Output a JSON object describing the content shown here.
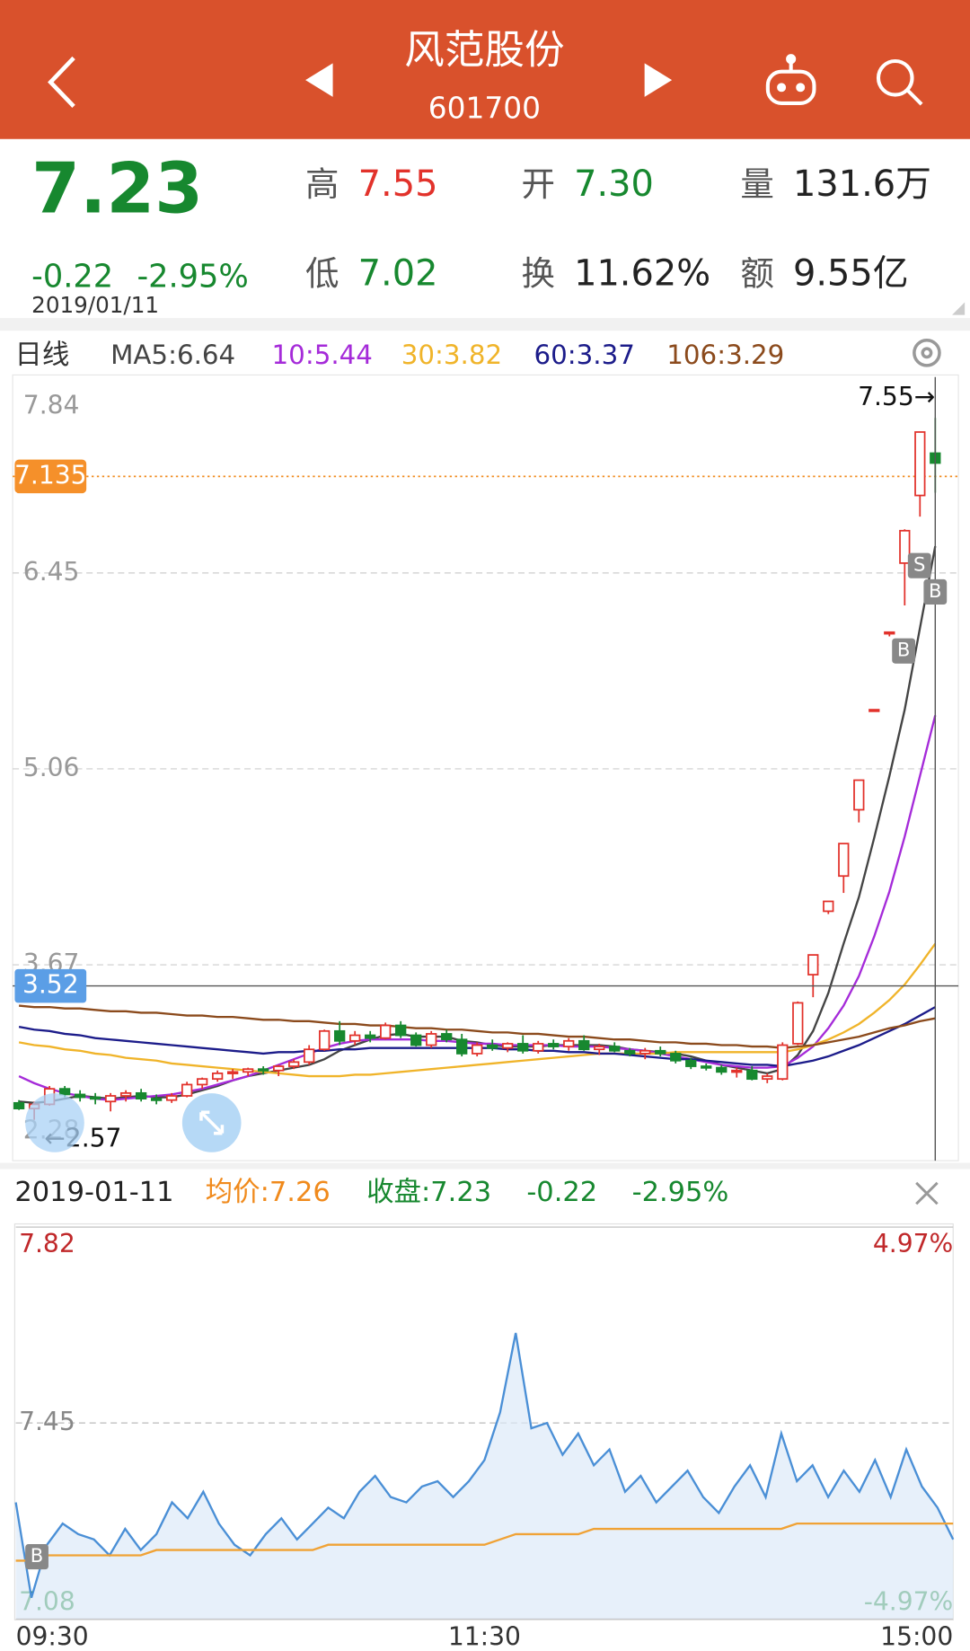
{
  "header": {
    "title": "风范股份",
    "code": "601700"
  },
  "quote": {
    "price": "7.23",
    "change": "-0.22",
    "change_pct": "-2.95%",
    "date": "2019/01/11",
    "fields": [
      {
        "label": "高",
        "value": "7.55"
      },
      {
        "label": "开",
        "value": "7.30"
      },
      {
        "label": "量",
        "value": "131.6万"
      },
      {
        "label": "低",
        "value": "7.02"
      },
      {
        "label": "换",
        "value": "11.62%"
      },
      {
        "label": "额",
        "value": "9.55亿"
      }
    ]
  },
  "info_bar": {
    "date": "2019-01-11",
    "avg": "均价:7.26",
    "close": "收盘:7.23",
    "change": "-0.22",
    "change_pct": "-2.95%"
  },
  "chart_data": [
    {
      "type": "candlestick",
      "period_label": "日线",
      "up_color": "#e2322b",
      "down_color": "#17882f",
      "open": [
        2.69,
        2.65,
        2.68,
        2.79,
        2.75,
        2.73,
        2.7,
        2.74,
        2.76,
        2.72,
        2.71,
        2.74,
        2.82,
        2.86,
        2.9,
        2.91,
        2.93,
        2.92,
        2.95,
        2.98,
        3.07,
        3.2,
        3.13,
        3.17,
        3.15,
        3.24,
        3.17,
        3.1,
        3.18,
        3.14,
        3.04,
        3.1,
        3.08,
        3.11,
        3.06,
        3.11,
        3.09,
        3.13,
        3.07,
        3.09,
        3.06,
        3.04,
        3.06,
        3.04,
        2.99,
        2.95,
        2.94,
        2.91,
        2.92,
        2.86,
        2.86,
        3.11,
        3.6,
        4.05,
        4.3,
        4.77,
        5.48,
        6.03,
        6.52,
        7.0,
        7.3
      ],
      "high": [
        2.71,
        2.7,
        2.81,
        2.81,
        2.78,
        2.76,
        2.76,
        2.78,
        2.79,
        2.75,
        2.76,
        2.84,
        2.87,
        2.92,
        2.93,
        2.94,
        2.95,
        2.96,
        3.0,
        3.1,
        3.21,
        3.27,
        3.2,
        3.2,
        3.26,
        3.27,
        3.19,
        3.2,
        3.21,
        3.18,
        3.12,
        3.14,
        3.12,
        3.17,
        3.13,
        3.14,
        3.15,
        3.17,
        3.11,
        3.12,
        3.08,
        3.08,
        3.09,
        3.06,
        3.01,
        2.97,
        2.96,
        2.94,
        2.95,
        2.9,
        3.12,
        3.41,
        3.74,
        4.12,
        4.53,
        4.98,
        5.48,
        6.03,
        6.76,
        7.45,
        7.55
      ],
      "low": [
        2.64,
        2.57,
        2.67,
        2.73,
        2.7,
        2.68,
        2.63,
        2.7,
        2.7,
        2.68,
        2.69,
        2.73,
        2.79,
        2.84,
        2.86,
        2.88,
        2.89,
        2.88,
        2.93,
        2.96,
        3.06,
        3.1,
        3.1,
        3.12,
        3.14,
        3.15,
        3.09,
        3.08,
        3.12,
        3.02,
        3.02,
        3.06,
        3.05,
        3.04,
        3.04,
        3.07,
        3.06,
        3.06,
        3.03,
        3.05,
        3.02,
        3.0,
        3.02,
        2.97,
        2.93,
        2.92,
        2.89,
        2.87,
        2.85,
        2.83,
        2.85,
        3.1,
        3.44,
        4.03,
        4.18,
        4.68,
        5.48,
        6.0,
        6.22,
        6.85,
        7.02
      ],
      "close": [
        2.65,
        2.68,
        2.79,
        2.75,
        2.73,
        2.72,
        2.74,
        2.76,
        2.72,
        2.71,
        2.74,
        2.82,
        2.86,
        2.9,
        2.91,
        2.93,
        2.92,
        2.95,
        2.98,
        3.07,
        3.2,
        3.13,
        3.17,
        3.15,
        3.24,
        3.17,
        3.1,
        3.18,
        3.14,
        3.04,
        3.1,
        3.08,
        3.11,
        3.06,
        3.11,
        3.09,
        3.13,
        3.07,
        3.09,
        3.06,
        3.04,
        3.06,
        3.04,
        2.99,
        2.95,
        2.94,
        2.91,
        2.92,
        2.86,
        2.88,
        3.1,
        3.4,
        3.74,
        4.12,
        4.53,
        4.98,
        5.48,
        6.03,
        6.75,
        7.45,
        7.23
      ],
      "series": [
        {
          "name": "MA5:6.64",
          "color": "#444444",
          "values": [
            2.7,
            2.69,
            2.7,
            2.72,
            2.74,
            2.73,
            2.72,
            2.73,
            2.74,
            2.73,
            2.73,
            2.75,
            2.78,
            2.81,
            2.85,
            2.88,
            2.9,
            2.92,
            2.94,
            2.96,
            3.0,
            3.06,
            3.1,
            3.14,
            3.17,
            3.18,
            3.16,
            3.16,
            3.16,
            3.13,
            3.12,
            3.1,
            3.09,
            3.09,
            3.09,
            3.1,
            3.1,
            3.1,
            3.1,
            3.09,
            3.07,
            3.06,
            3.05,
            3.04,
            3.02,
            2.99,
            2.96,
            2.94,
            2.92,
            2.9,
            2.93,
            3.03,
            3.2,
            3.47,
            3.82,
            4.15,
            4.57,
            5.01,
            5.48,
            6.06,
            6.64
          ]
        },
        {
          "name": "10:5.44",
          "color": "#a52bd9",
          "values": [
            2.88,
            2.83,
            2.79,
            2.76,
            2.74,
            2.72,
            2.71,
            2.72,
            2.73,
            2.74,
            2.75,
            2.77,
            2.79,
            2.82,
            2.85,
            2.88,
            2.92,
            2.96,
            3.0,
            3.04,
            3.08,
            3.11,
            3.13,
            3.14,
            3.14,
            3.14,
            3.14,
            3.13,
            3.13,
            3.12,
            3.11,
            3.11,
            3.1,
            3.1,
            3.1,
            3.1,
            3.09,
            3.09,
            3.09,
            3.08,
            3.07,
            3.06,
            3.04,
            3.02,
            3.0,
            2.98,
            2.96,
            2.95,
            2.94,
            2.94,
            2.95,
            3.01,
            3.09,
            3.22,
            3.38,
            3.59,
            3.87,
            4.19,
            4.58,
            5.01,
            5.44
          ]
        },
        {
          "name": "30:3.82",
          "color": "#f0b42a",
          "values": [
            3.12,
            3.1,
            3.09,
            3.07,
            3.06,
            3.04,
            3.03,
            3.01,
            3.0,
            2.99,
            2.97,
            2.96,
            2.95,
            2.94,
            2.93,
            2.92,
            2.91,
            2.9,
            2.89,
            2.88,
            2.88,
            2.88,
            2.89,
            2.89,
            2.9,
            2.91,
            2.92,
            2.93,
            2.94,
            2.95,
            2.96,
            2.97,
            2.98,
            2.99,
            3.0,
            3.01,
            3.02,
            3.03,
            3.04,
            3.04,
            3.04,
            3.04,
            3.04,
            3.05,
            3.05,
            3.05,
            3.05,
            3.05,
            3.05,
            3.05,
            3.05,
            3.07,
            3.1,
            3.14,
            3.19,
            3.25,
            3.33,
            3.42,
            3.53,
            3.67,
            3.82
          ]
        },
        {
          "name": "60:3.37",
          "color": "#1c1c8a",
          "values": [
            3.23,
            3.21,
            3.2,
            3.18,
            3.17,
            3.15,
            3.14,
            3.13,
            3.12,
            3.11,
            3.1,
            3.09,
            3.08,
            3.07,
            3.06,
            3.05,
            3.04,
            3.05,
            3.05,
            3.06,
            3.06,
            3.07,
            3.07,
            3.08,
            3.08,
            3.08,
            3.08,
            3.08,
            3.08,
            3.08,
            3.08,
            3.08,
            3.07,
            3.07,
            3.06,
            3.06,
            3.05,
            3.05,
            3.04,
            3.04,
            3.03,
            3.02,
            3.01,
            3.0,
            3.0,
            2.99,
            2.98,
            2.97,
            2.96,
            2.96,
            2.95,
            2.97,
            2.99,
            3.02,
            3.06,
            3.1,
            3.15,
            3.2,
            3.25,
            3.31,
            3.37
          ]
        },
        {
          "name": "106:3.29",
          "color": "#8b4a1c",
          "values": [
            3.38,
            3.37,
            3.37,
            3.36,
            3.36,
            3.35,
            3.34,
            3.34,
            3.33,
            3.33,
            3.32,
            3.31,
            3.31,
            3.3,
            3.3,
            3.29,
            3.28,
            3.28,
            3.27,
            3.27,
            3.26,
            3.25,
            3.25,
            3.24,
            3.24,
            3.23,
            3.22,
            3.22,
            3.21,
            3.21,
            3.2,
            3.19,
            3.19,
            3.18,
            3.18,
            3.17,
            3.16,
            3.16,
            3.15,
            3.14,
            3.14,
            3.13,
            3.12,
            3.12,
            3.11,
            3.11,
            3.1,
            3.1,
            3.09,
            3.09,
            3.08,
            3.09,
            3.1,
            3.12,
            3.14,
            3.16,
            3.19,
            3.22,
            3.24,
            3.27,
            3.29
          ]
        }
      ],
      "ylim": [
        2.28,
        7.84
      ],
      "yticks": [
        2.28,
        3.67,
        5.06,
        6.45,
        7.84
      ],
      "grid": true,
      "reference_line": 7.135,
      "crosshair_value": 3.52,
      "high_label": "7.55→",
      "low_label": "←2.57",
      "trade_markers": [
        "B",
        "S",
        "B"
      ]
    },
    {
      "type": "line",
      "x": [
        0,
        4,
        8,
        12,
        16,
        20,
        24,
        28,
        32,
        36,
        40,
        44,
        48,
        52,
        56,
        60,
        64,
        68,
        72,
        76,
        80,
        84,
        88,
        92,
        96,
        100,
        104,
        108,
        112,
        116,
        120,
        124,
        128,
        132,
        136,
        140,
        144,
        148,
        152,
        156,
        160,
        164,
        168,
        172,
        176,
        180,
        184,
        188,
        192,
        196,
        200,
        204,
        208,
        212,
        216,
        220,
        224,
        228,
        232,
        236,
        240
      ],
      "series": [
        {
          "color": "#4a8fd6",
          "values": [
            7.3,
            7.12,
            7.22,
            7.26,
            7.24,
            7.23,
            7.2,
            7.25,
            7.21,
            7.24,
            7.3,
            7.27,
            7.32,
            7.26,
            7.22,
            7.2,
            7.24,
            7.27,
            7.23,
            7.26,
            7.29,
            7.27,
            7.32,
            7.35,
            7.31,
            7.3,
            7.33,
            7.34,
            7.31,
            7.34,
            7.38,
            7.47,
            7.62,
            7.44,
            7.45,
            7.39,
            7.43,
            7.37,
            7.4,
            7.32,
            7.35,
            7.3,
            7.33,
            7.36,
            7.31,
            7.28,
            7.33,
            7.37,
            7.31,
            7.43,
            7.34,
            7.37,
            7.31,
            7.36,
            7.32,
            7.38,
            7.31,
            7.4,
            7.33,
            7.29,
            7.23
          ]
        },
        {
          "color": "#f0a235",
          "values": [
            7.19,
            7.19,
            7.2,
            7.2,
            7.2,
            7.2,
            7.2,
            7.2,
            7.2,
            7.21,
            7.21,
            7.21,
            7.21,
            7.21,
            7.21,
            7.21,
            7.21,
            7.21,
            7.21,
            7.21,
            7.22,
            7.22,
            7.22,
            7.22,
            7.22,
            7.22,
            7.22,
            7.22,
            7.22,
            7.22,
            7.22,
            7.23,
            7.24,
            7.24,
            7.24,
            7.24,
            7.24,
            7.25,
            7.25,
            7.25,
            7.25,
            7.25,
            7.25,
            7.25,
            7.25,
            7.25,
            7.25,
            7.25,
            7.25,
            7.25,
            7.26,
            7.26,
            7.26,
            7.26,
            7.26,
            7.26,
            7.26,
            7.26,
            7.26,
            7.26,
            7.26
          ]
        }
      ],
      "xlim": [
        0,
        240
      ],
      "xticks": [
        {
          "value": 0,
          "label": "09:30"
        },
        {
          "value": 120,
          "label": "11:30"
        },
        {
          "value": 240,
          "label": "15:00"
        }
      ],
      "ylim": [
        7.08,
        7.82
      ],
      "yticks": [
        7.82,
        7.45,
        7.08
      ],
      "y2lim": [
        -4.97,
        4.97
      ],
      "y2ticks": [
        {
          "value": 4.97,
          "label": "4.97%"
        },
        {
          "value": -4.97,
          "label": "-4.97%"
        }
      ],
      "trade_markers": [
        "B"
      ]
    }
  ]
}
